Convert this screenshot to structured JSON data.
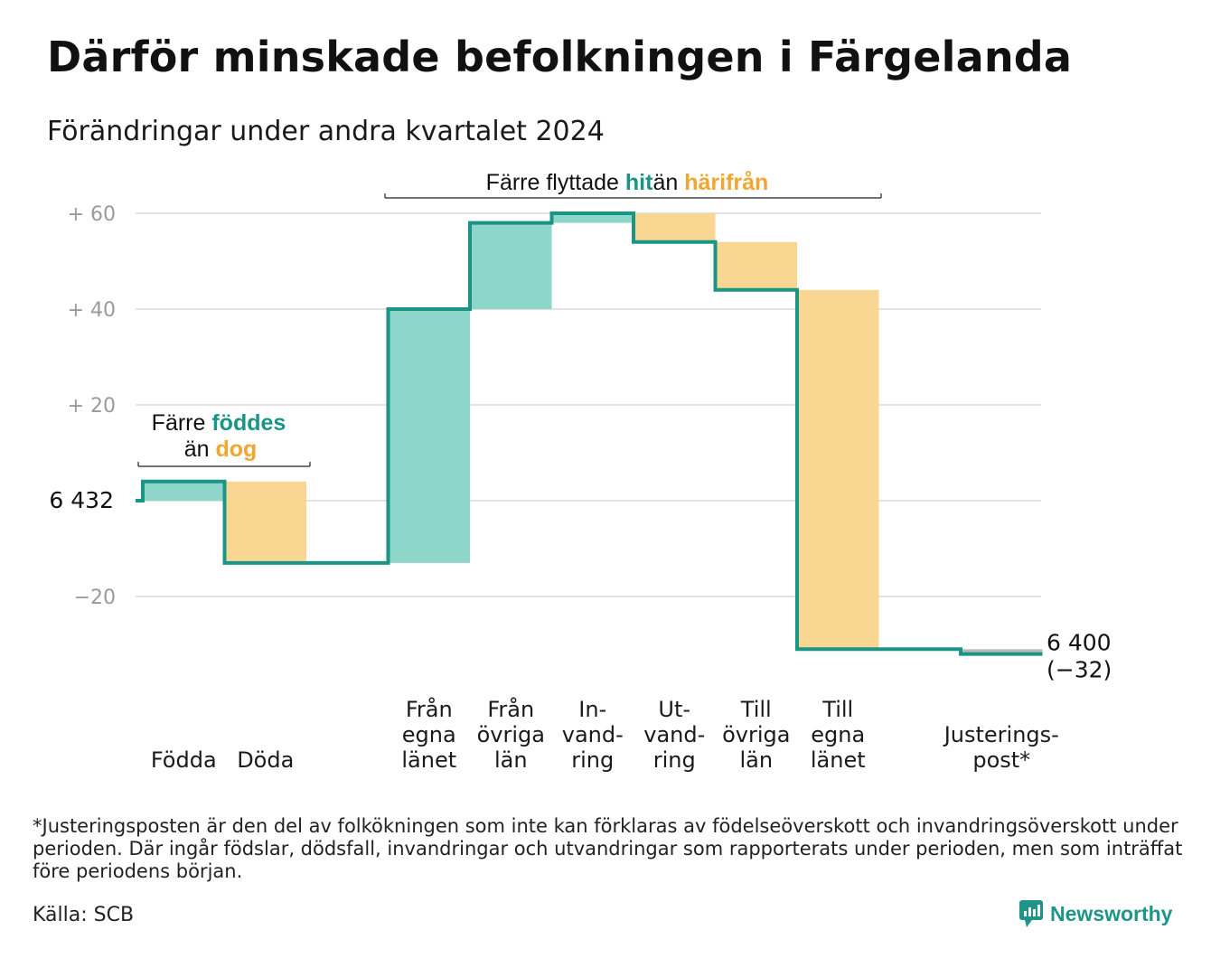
{
  "header": {
    "title": "Därför minskade befolkningen i Färgelanda",
    "subtitle": "Förändringar under andra kvartalet 2024"
  },
  "colors": {
    "line": "#1a9485",
    "increase": "#8fd6ca",
    "decrease": "#fad693",
    "accent_teal": "#1a9485",
    "accent_orange": "#f0a630",
    "grid": "#e2e2e2",
    "adjustment": "#bbbbbb"
  },
  "chart_data": {
    "type": "waterfall",
    "start_value": 6432,
    "start_label": "6  432",
    "end_label_value": "6 400",
    "end_label_change": "(−32)",
    "ylim": [
      -32,
      64
    ],
    "y_ticks": [
      {
        "value": 60,
        "label": "+  60"
      },
      {
        "value": 40,
        "label": "+  40"
      },
      {
        "value": 20,
        "label": "+  20"
      },
      {
        "value": 0,
        "label": "6  432"
      },
      {
        "value": -20,
        "label": "−20"
      }
    ],
    "steps": [
      {
        "label_lines": [
          "Födda"
        ],
        "change": 4,
        "kind": "increase"
      },
      {
        "label_lines": [
          "Döda"
        ],
        "change": -17,
        "kind": "decrease"
      },
      {
        "label_lines": [],
        "change": 0,
        "kind": "none"
      },
      {
        "label_lines": [
          "Från",
          "egna",
          "länet"
        ],
        "change": 53,
        "kind": "increase"
      },
      {
        "label_lines": [
          "Från",
          "övriga",
          "län"
        ],
        "change": 18,
        "kind": "increase"
      },
      {
        "label_lines": [
          "In-",
          "vand-",
          "ring"
        ],
        "change": 2,
        "kind": "increase"
      },
      {
        "label_lines": [
          "Ut-",
          "vand-",
          "ring"
        ],
        "change": -6,
        "kind": "decrease"
      },
      {
        "label_lines": [
          "Till",
          "övriga",
          "län"
        ],
        "change": -10,
        "kind": "decrease"
      },
      {
        "label_lines": [
          "Till",
          "egna",
          "länet"
        ],
        "change": -75,
        "kind": "decrease"
      },
      {
        "label_lines": [],
        "change": 0,
        "kind": "none"
      },
      {
        "label_lines": [
          "Justerings-",
          "post*"
        ],
        "change": -1,
        "kind": "adjustment"
      }
    ],
    "annotations": [
      {
        "id": "births",
        "text_parts": [
          {
            "line": 0,
            "text": "Färre ",
            "color": "dark"
          },
          {
            "line": 0,
            "text": "föddes",
            "color": "teal"
          },
          {
            "line": 1,
            "text": "än ",
            "color": "dark"
          },
          {
            "line": 1,
            "text": "dog",
            "color": "orange"
          }
        ]
      },
      {
        "id": "migration",
        "text_parts": [
          {
            "line": 0,
            "text": "Färre flyttade ",
            "color": "dark"
          },
          {
            "line": 0,
            "text": "hit",
            "color": "teal"
          },
          {
            "line": 0,
            "text": "än ",
            "color": "dark"
          },
          {
            "line": 0,
            "text": "härifrån",
            "color": "orange"
          }
        ]
      }
    ]
  },
  "footnote": "*Justeringsposten är den del av folkökningen som inte kan förklaras av födelseöverskott och invandringsöverskott under perioden. Där ingår födslar, dödsfall, invandringar och utvandringar som rapporterats under perioden, men som inträffat före periodens början.",
  "source": "Källa: SCB",
  "brand": {
    "name": "Newsworthy",
    "icon": "newsworthy-logo-icon"
  }
}
